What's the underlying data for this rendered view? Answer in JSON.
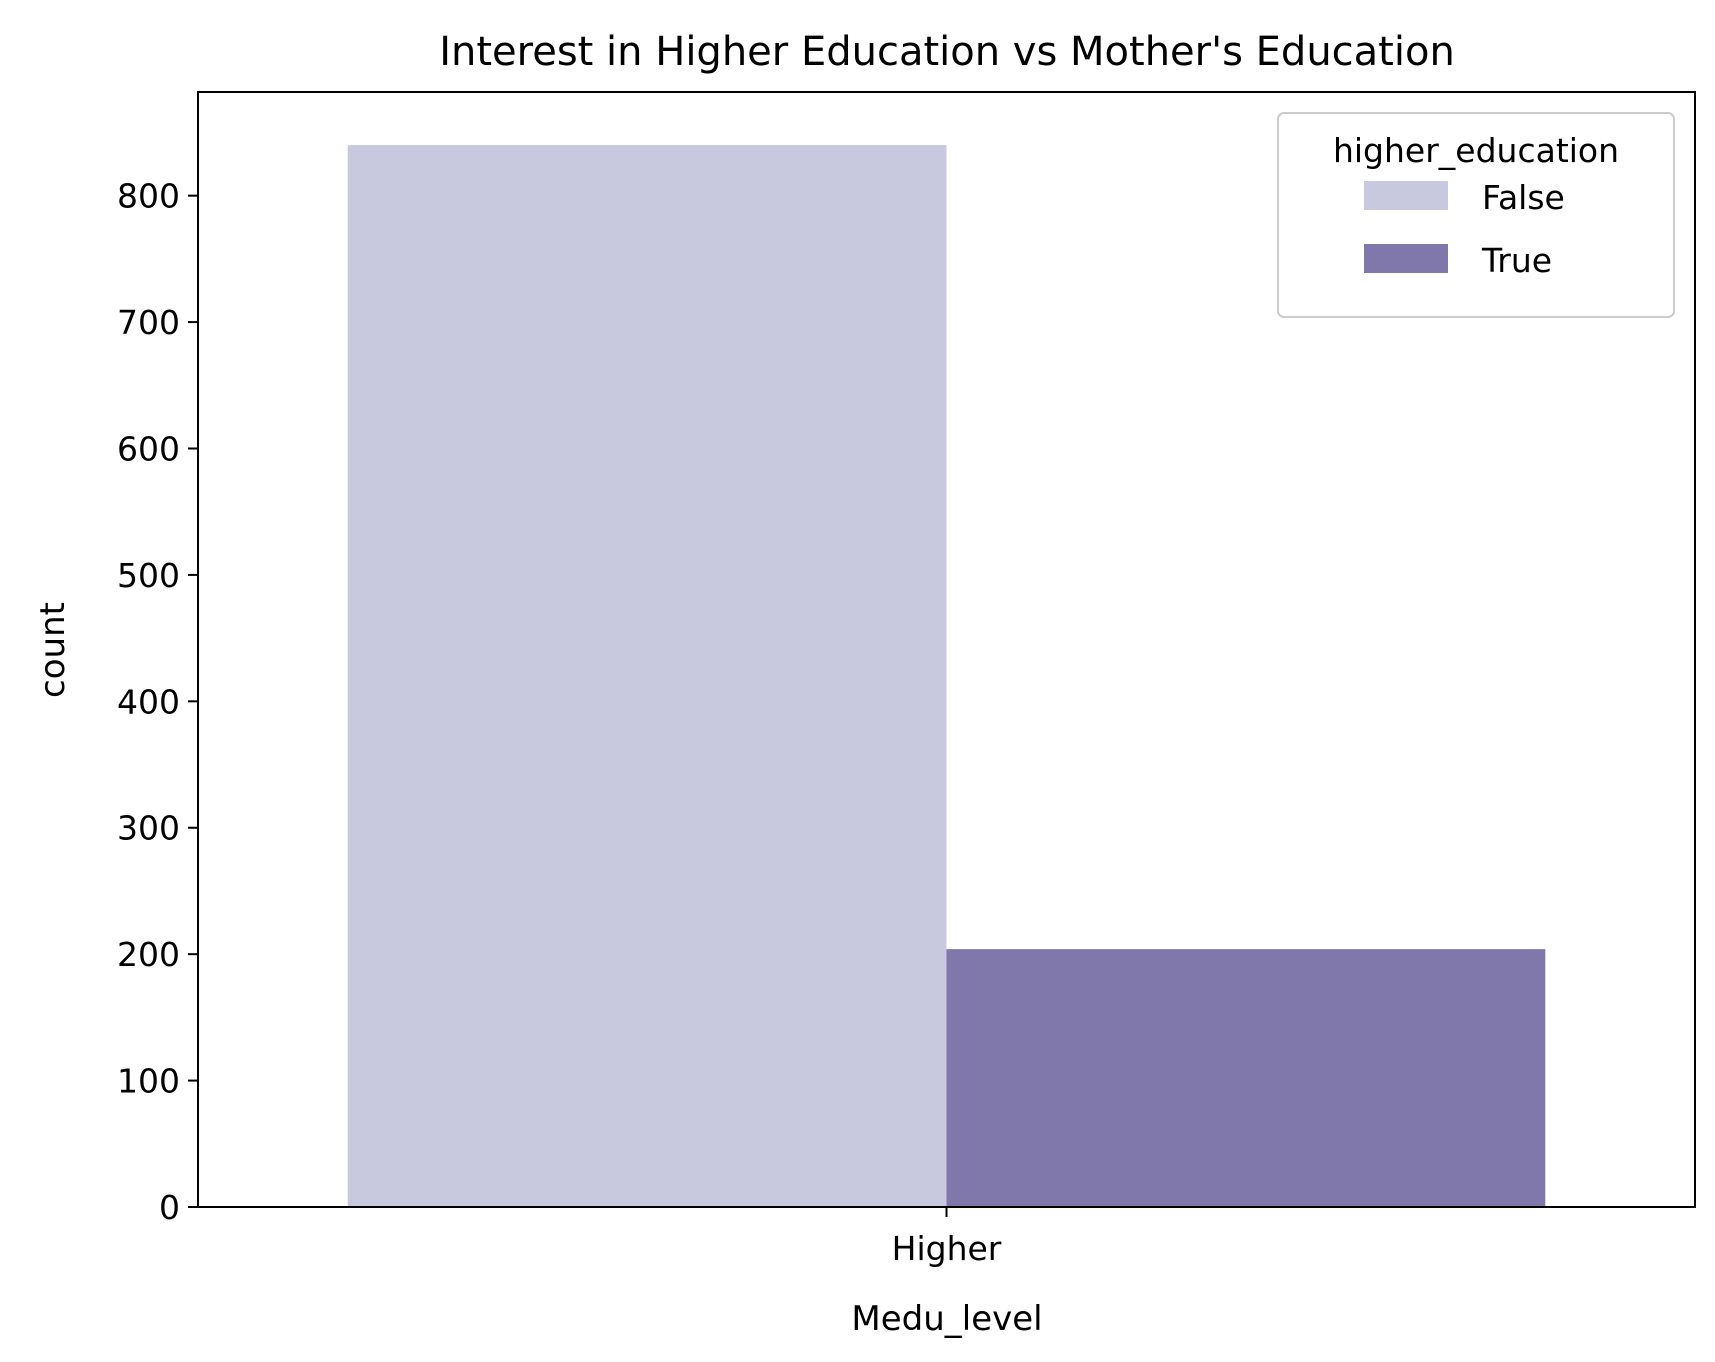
{
  "chart_data": {
    "type": "bar",
    "title": "Interest in Higher Education vs Mother's Education",
    "xlabel": "Medu_level",
    "ylabel": "count",
    "categories": [
      "Higher"
    ],
    "series": [
      {
        "name": "False",
        "values": [
          840
        ],
        "color": "#c8c9de"
      },
      {
        "name": "True",
        "values": [
          204
        ],
        "color": "#8077aa"
      }
    ],
    "ylim": [
      0,
      882
    ],
    "yticks": [
      0,
      100,
      200,
      300,
      400,
      500,
      600,
      700,
      800
    ],
    "grid": false,
    "legend": {
      "title": "higher_education",
      "placement": "top-right"
    }
  }
}
